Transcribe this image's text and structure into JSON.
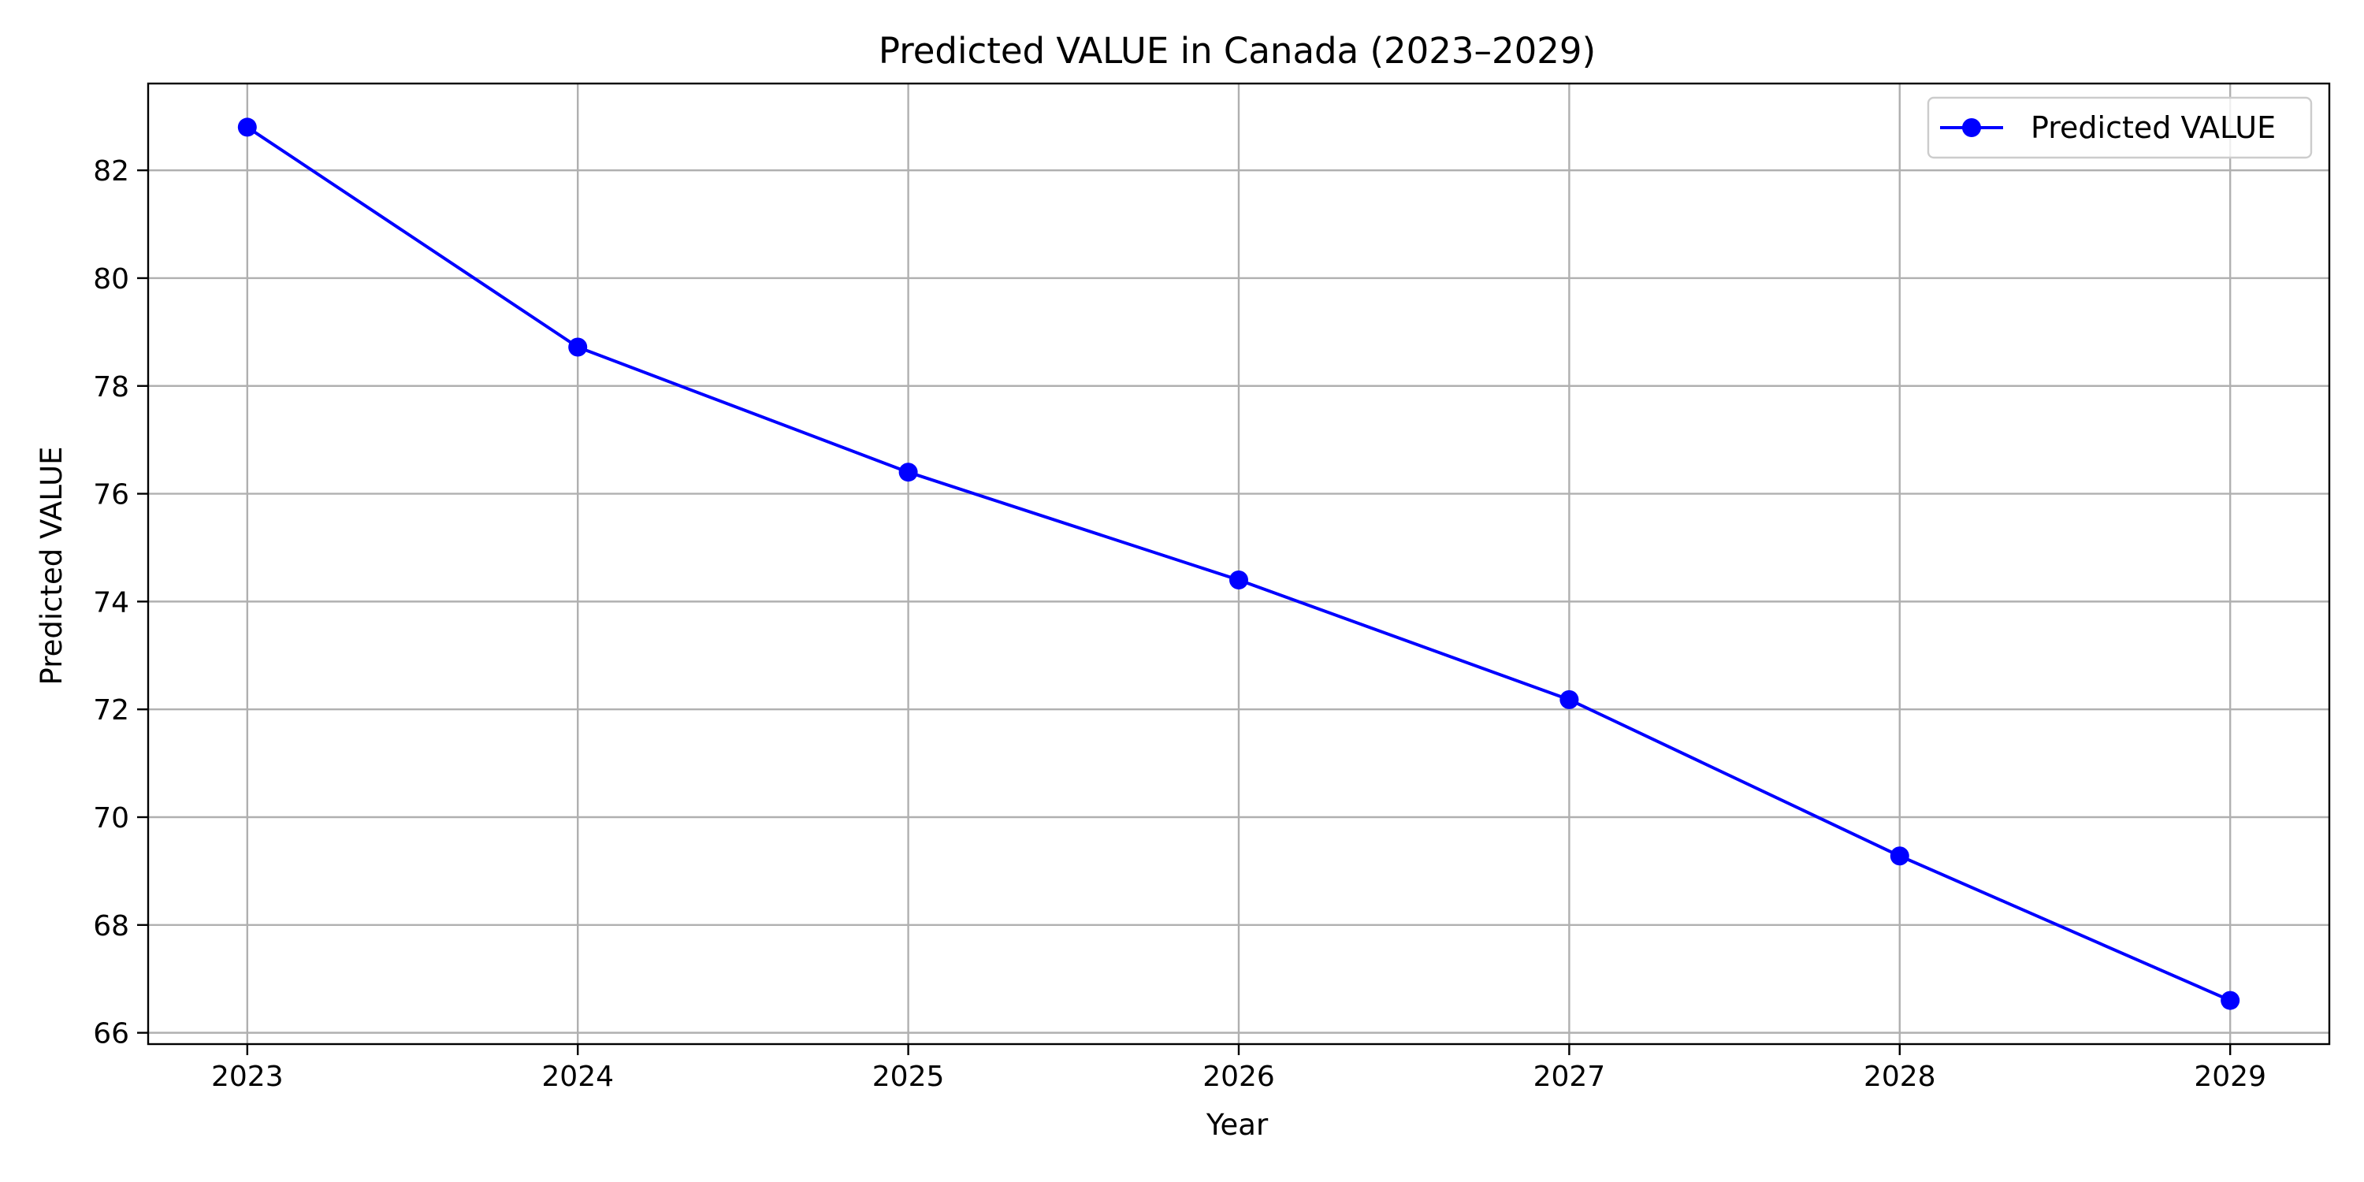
{
  "chart_data": {
    "type": "line",
    "title": "Predicted VALUE in Canada (2023–2029)",
    "xlabel": "Year",
    "ylabel": "Predicted VALUE",
    "x": [
      2023,
      2024,
      2025,
      2026,
      2027,
      2028,
      2029
    ],
    "series": [
      {
        "name": "Predicted VALUE",
        "values": [
          82.8,
          78.72,
          76.4,
          74.4,
          72.18,
          69.28,
          66.6
        ],
        "color": "#0000ff",
        "marker": "circle"
      }
    ],
    "xlim": [
      2022.7,
      2029.3
    ],
    "ylim": [
      65.79,
      83.61
    ],
    "xticks": [
      "2023",
      "2024",
      "2025",
      "2026",
      "2027",
      "2028",
      "2029"
    ],
    "yticks": [
      "66",
      "68",
      "70",
      "72",
      "74",
      "76",
      "78",
      "80",
      "82"
    ],
    "grid": true,
    "legend_position": "top-right"
  }
}
